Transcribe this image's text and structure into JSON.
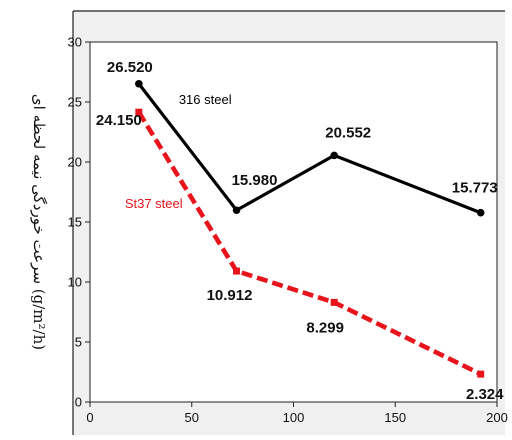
{
  "chart_data": {
    "type": "line",
    "title": "",
    "xlabel": "",
    "ylabel": "سرعت خوردگی نیمه لحظه ای (g/m²/h)",
    "xlim": [
      0,
      200
    ],
    "ylim": [
      0,
      30
    ],
    "x_ticks": [
      0,
      50,
      100,
      150,
      200
    ],
    "y_ticks": [
      0,
      5,
      10,
      15,
      20,
      25,
      30
    ],
    "x_tick_labels": [
      "0",
      "50",
      "100",
      "150",
      "200"
    ],
    "y_tick_labels": [
      "0",
      "5",
      "10",
      "15",
      "20",
      "25",
      "30"
    ],
    "grid": false,
    "series": [
      {
        "name": "316 steel",
        "color": "#000000",
        "line_style": "solid",
        "x": [
          24,
          72,
          120,
          192
        ],
        "values": [
          26.52,
          15.98,
          20.552,
          15.773
        ],
        "point_labels": [
          "26.520",
          "15.980",
          "20.552",
          "15.773"
        ]
      },
      {
        "name": "St37 steel",
        "color": "#e8141c",
        "line_style": "dashed",
        "x": [
          24,
          72,
          120,
          192
        ],
        "values": [
          24.15,
          10.912,
          8.299,
          2.324
        ],
        "point_labels": [
          "24.150",
          "10.912",
          "8.299",
          "2.324"
        ]
      }
    ]
  }
}
